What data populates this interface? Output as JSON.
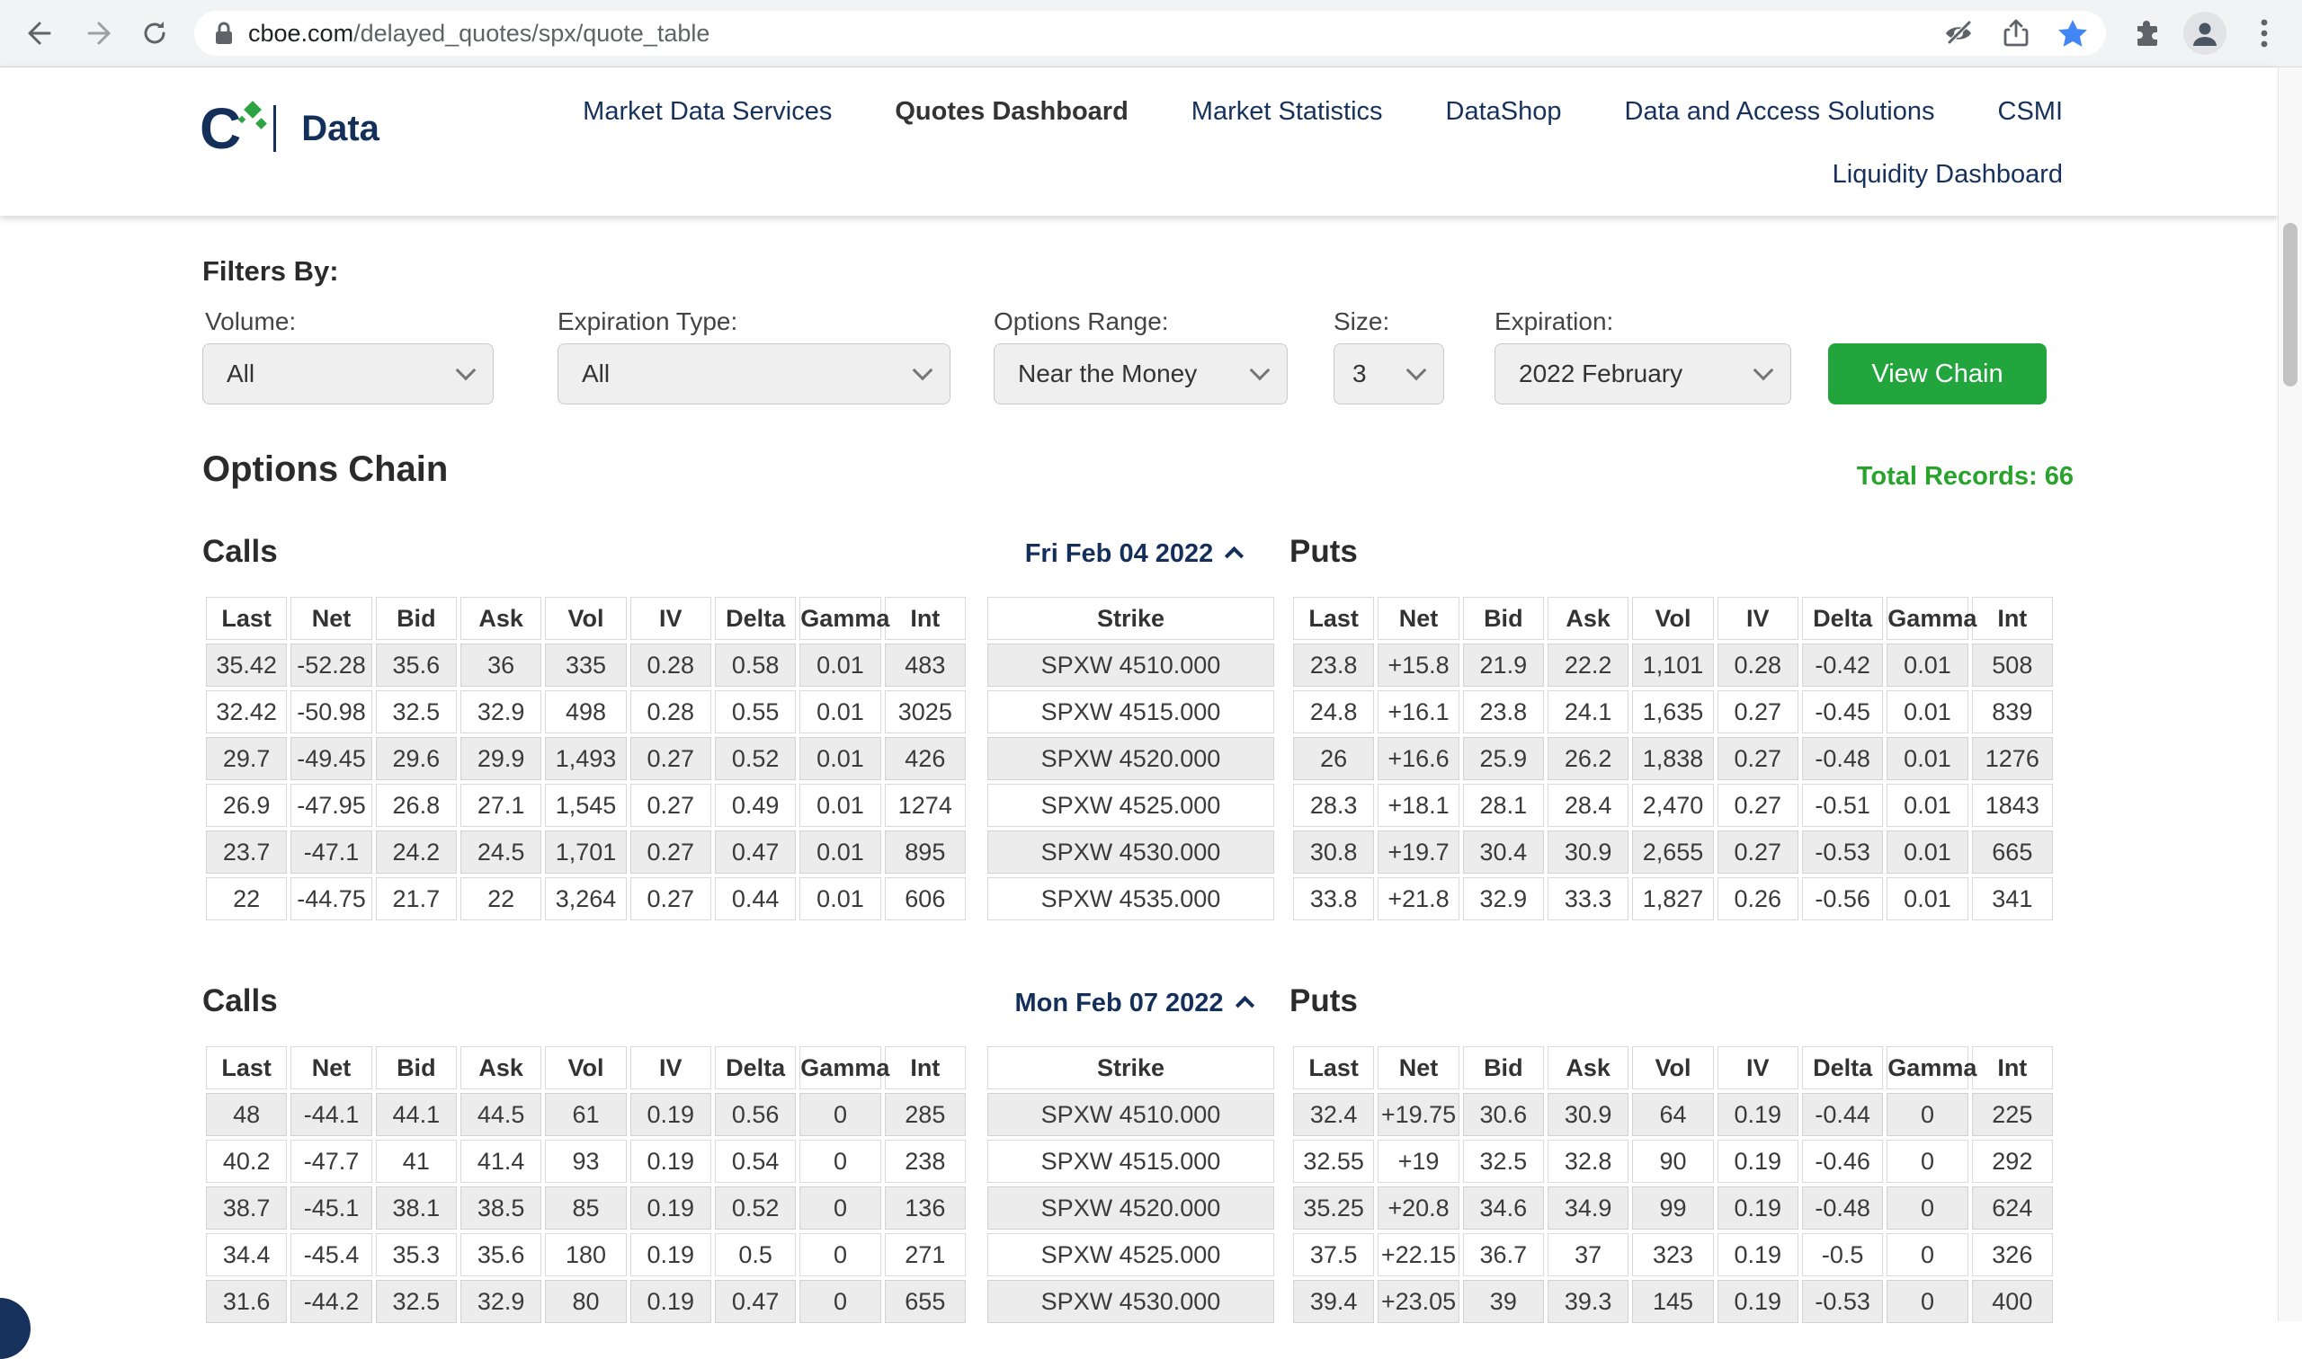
{
  "browser": {
    "url_host": "cboe.com",
    "url_path": "/delayed_quotes/spx/quote_table",
    "icons": [
      "back-icon",
      "forward-icon",
      "reload-icon",
      "lock-icon",
      "hidden-eye-icon",
      "share-icon",
      "bookmark-star-icon",
      "extensions-puzzle-icon",
      "profile-avatar-icon",
      "menu-dots-icon"
    ]
  },
  "header": {
    "brand": "Data",
    "nav": [
      "Market Data Services",
      "Quotes Dashboard",
      "Market Statistics",
      "DataShop",
      "Data and Access Solutions",
      "CSMI"
    ],
    "active_nav": "Quotes Dashboard",
    "nav_row2": "Liquidity Dashboard"
  },
  "filters": {
    "title": "Filters By:",
    "fields": [
      {
        "label": "Volume:",
        "value": "All"
      },
      {
        "label": "Expiration Type:",
        "value": "All"
      },
      {
        "label": "Options Range:",
        "value": "Near the Money"
      },
      {
        "label": "Size:",
        "value": "3"
      },
      {
        "label": "Expiration:",
        "value": "2022 February"
      }
    ],
    "button_label": "View Chain"
  },
  "options_chain": {
    "title": "Options Chain",
    "total_records_label": "Total Records: 66",
    "calls_label": "Calls",
    "puts_label": "Puts",
    "columns": [
      "Last",
      "Net",
      "Bid",
      "Ask",
      "Vol",
      "IV",
      "Delta",
      "Gamma",
      "Int"
    ],
    "strike_header": "Strike",
    "sections": [
      {
        "date": "Fri Feb 04 2022",
        "calls": [
          [
            "35.42",
            "-52.28",
            "35.6",
            "36",
            "335",
            "0.28",
            "0.58",
            "0.01",
            "483"
          ],
          [
            "32.42",
            "-50.98",
            "32.5",
            "32.9",
            "498",
            "0.28",
            "0.55",
            "0.01",
            "3025"
          ],
          [
            "29.7",
            "-49.45",
            "29.6",
            "29.9",
            "1,493",
            "0.27",
            "0.52",
            "0.01",
            "426"
          ],
          [
            "26.9",
            "-47.95",
            "26.8",
            "27.1",
            "1,545",
            "0.27",
            "0.49",
            "0.01",
            "1274"
          ],
          [
            "23.7",
            "-47.1",
            "24.2",
            "24.5",
            "1,701",
            "0.27",
            "0.47",
            "0.01",
            "895"
          ],
          [
            "22",
            "-44.75",
            "21.7",
            "22",
            "3,264",
            "0.27",
            "0.44",
            "0.01",
            "606"
          ]
        ],
        "strikes": [
          "SPXW 4510.000",
          "SPXW 4515.000",
          "SPXW 4520.000",
          "SPXW 4525.000",
          "SPXW 4530.000",
          "SPXW 4535.000"
        ],
        "puts": [
          [
            "23.8",
            "+15.8",
            "21.9",
            "22.2",
            "1,101",
            "0.28",
            "-0.42",
            "0.01",
            "508"
          ],
          [
            "24.8",
            "+16.1",
            "23.8",
            "24.1",
            "1,635",
            "0.27",
            "-0.45",
            "0.01",
            "839"
          ],
          [
            "26",
            "+16.6",
            "25.9",
            "26.2",
            "1,838",
            "0.27",
            "-0.48",
            "0.01",
            "1276"
          ],
          [
            "28.3",
            "+18.1",
            "28.1",
            "28.4",
            "2,470",
            "0.27",
            "-0.51",
            "0.01",
            "1843"
          ],
          [
            "30.8",
            "+19.7",
            "30.4",
            "30.9",
            "2,655",
            "0.27",
            "-0.53",
            "0.01",
            "665"
          ],
          [
            "33.8",
            "+21.8",
            "32.9",
            "33.3",
            "1,827",
            "0.26",
            "-0.56",
            "0.01",
            "341"
          ]
        ]
      },
      {
        "date": "Mon Feb 07 2022",
        "calls": [
          [
            "48",
            "-44.1",
            "44.1",
            "44.5",
            "61",
            "0.19",
            "0.56",
            "0",
            "285"
          ],
          [
            "40.2",
            "-47.7",
            "41",
            "41.4",
            "93",
            "0.19",
            "0.54",
            "0",
            "238"
          ],
          [
            "38.7",
            "-45.1",
            "38.1",
            "38.5",
            "85",
            "0.19",
            "0.52",
            "0",
            "136"
          ],
          [
            "34.4",
            "-45.4",
            "35.3",
            "35.6",
            "180",
            "0.19",
            "0.5",
            "0",
            "271"
          ],
          [
            "31.6",
            "-44.2",
            "32.5",
            "32.9",
            "80",
            "0.19",
            "0.47",
            "0",
            "655"
          ]
        ],
        "strikes": [
          "SPXW 4510.000",
          "SPXW 4515.000",
          "SPXW 4520.000",
          "SPXW 4525.000",
          "SPXW 4530.000"
        ],
        "puts": [
          [
            "32.4",
            "+19.75",
            "30.6",
            "30.9",
            "64",
            "0.19",
            "-0.44",
            "0",
            "225"
          ],
          [
            "32.55",
            "+19",
            "32.5",
            "32.8",
            "90",
            "0.19",
            "-0.46",
            "0",
            "292"
          ],
          [
            "35.25",
            "+20.8",
            "34.6",
            "34.9",
            "99",
            "0.19",
            "-0.48",
            "0",
            "624"
          ],
          [
            "37.5",
            "+22.15",
            "36.7",
            "37",
            "323",
            "0.19",
            "-0.5",
            "0",
            "326"
          ],
          [
            "39.4",
            "+23.05",
            "39",
            "39.3",
            "145",
            "0.19",
            "-0.53",
            "0",
            "400"
          ]
        ]
      }
    ]
  },
  "colors": {
    "brand_navy": "#14305a",
    "button_green": "#22a53c",
    "records_green": "#28a32b",
    "net_negative_red": "#c53b22",
    "net_positive_green": "#2aa32b",
    "bookmark_blue": "#4285f4"
  }
}
